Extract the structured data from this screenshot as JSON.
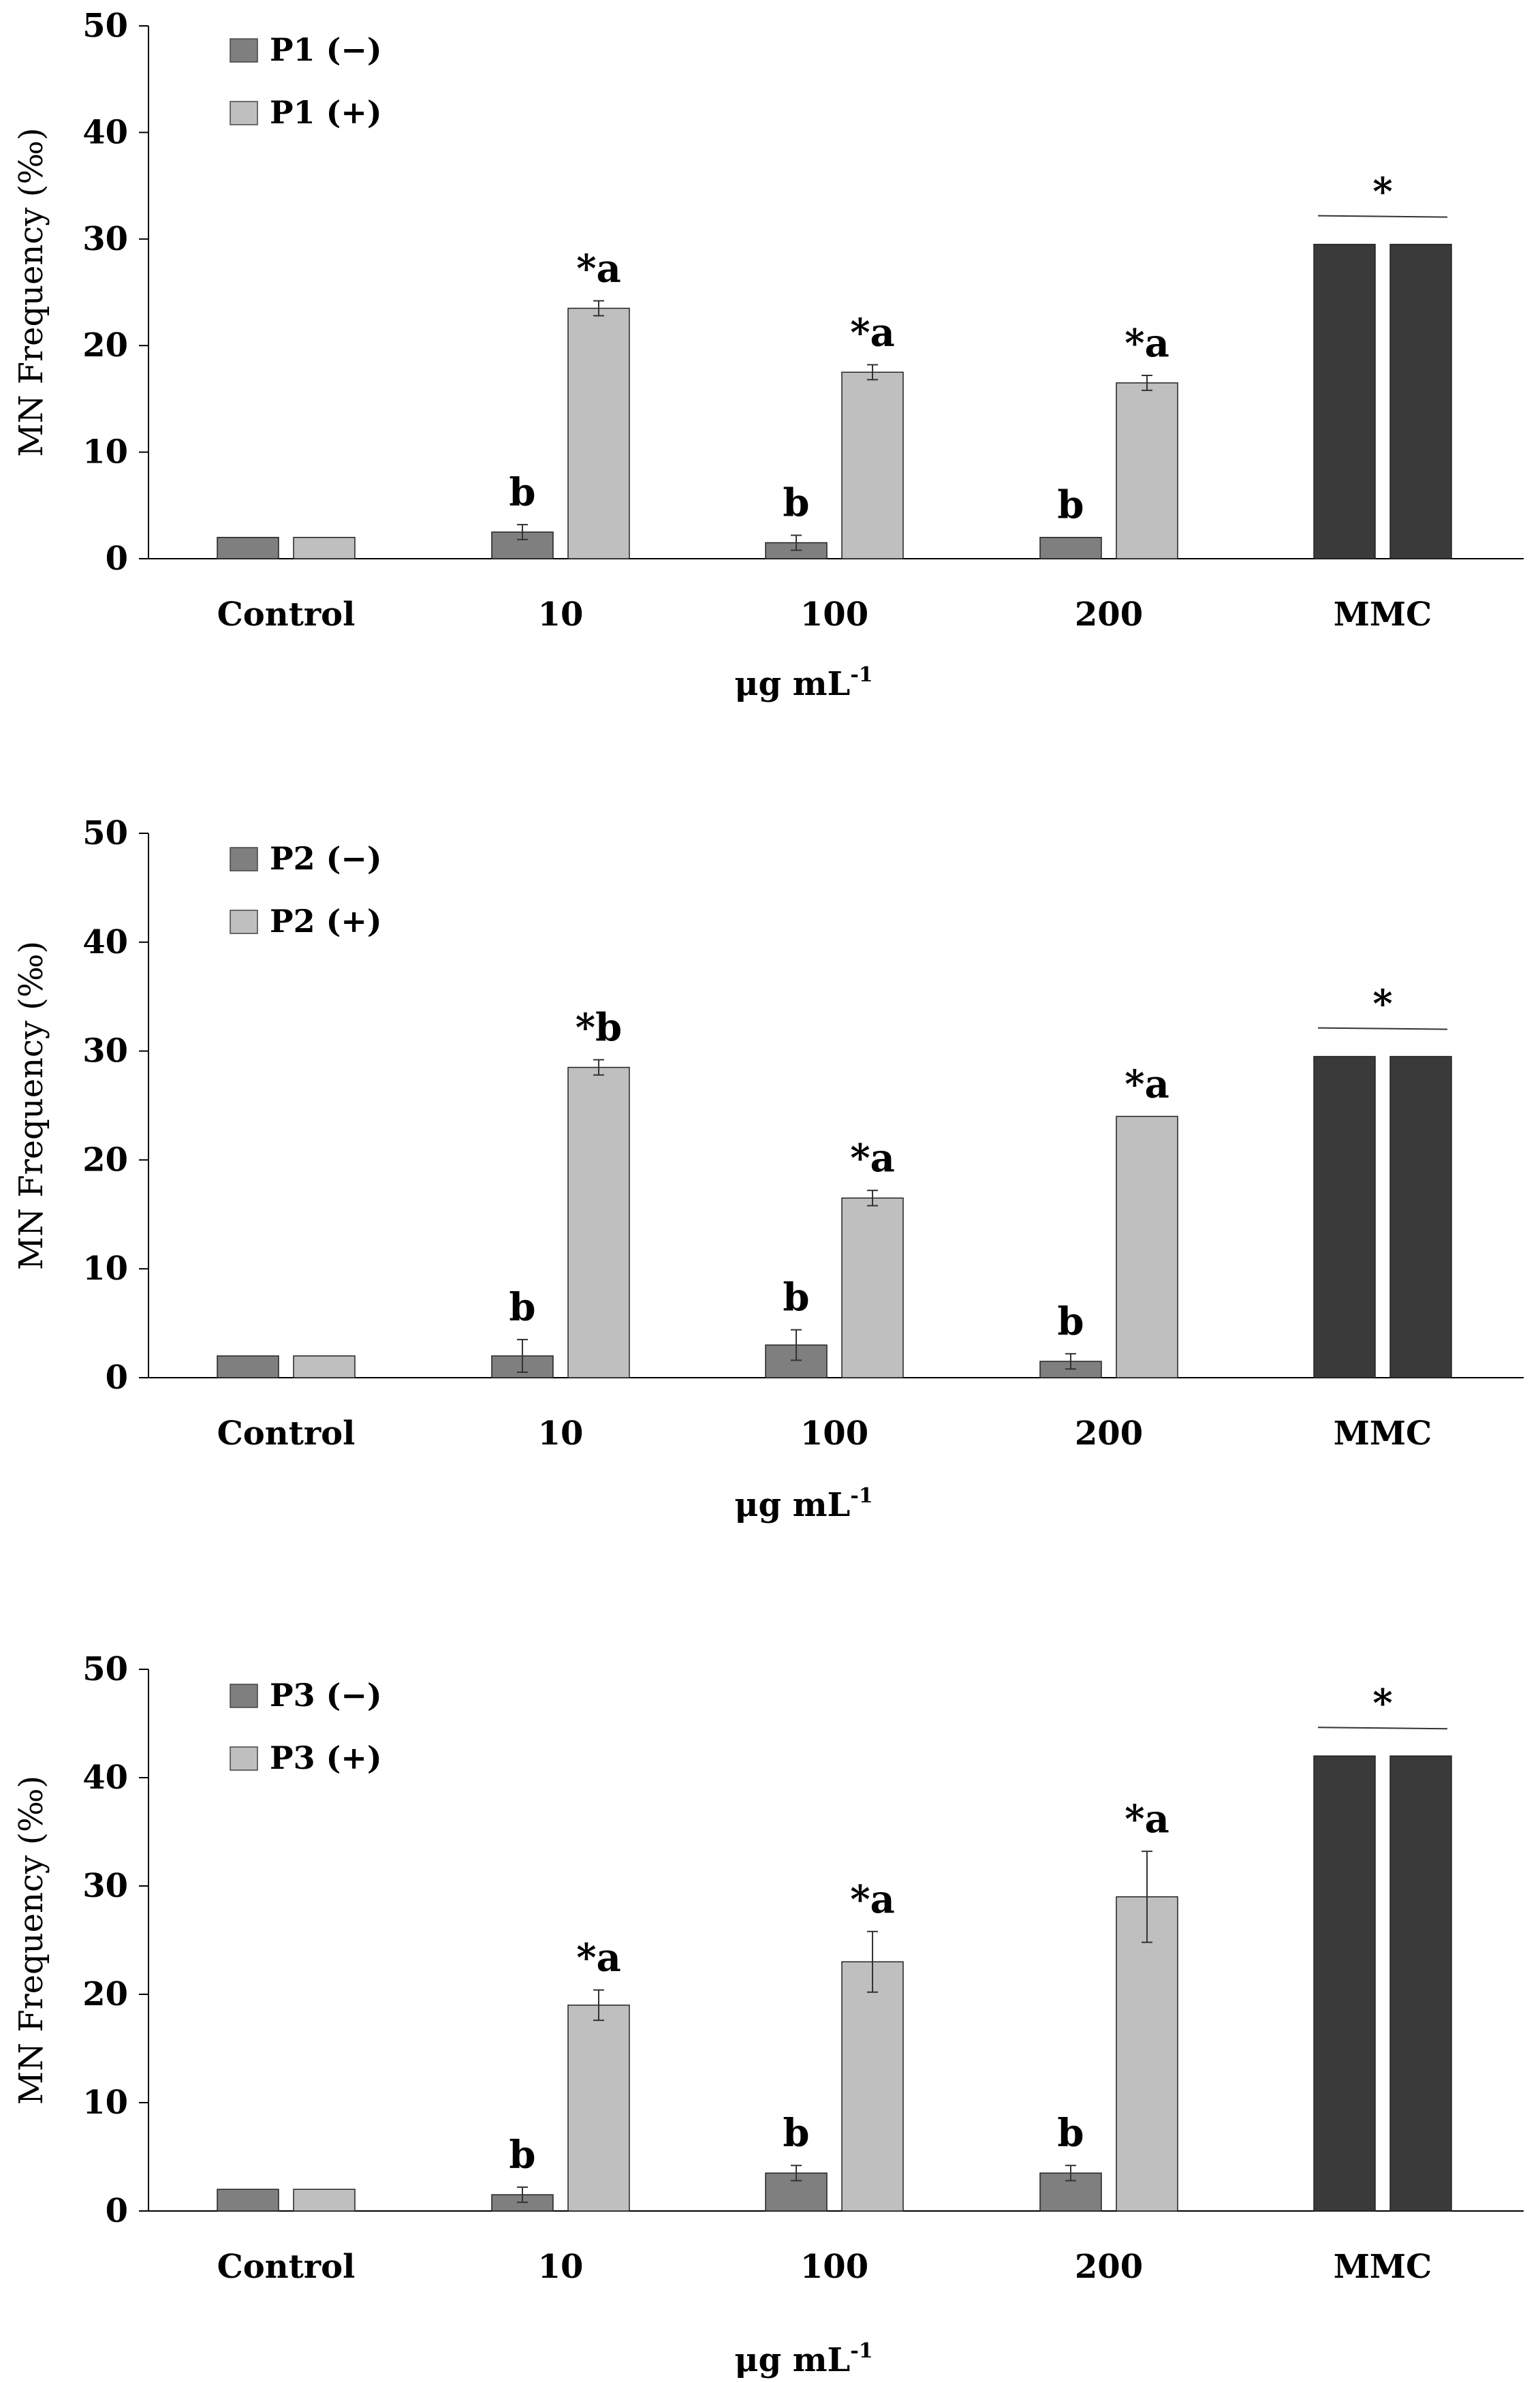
{
  "colors": {
    "minus": "#7f7f7f",
    "plus": "#bfbfbf",
    "mmc": "#3a3a3a",
    "axis": "#000000"
  },
  "chart_data": [
    {
      "type": "bar",
      "ylabel": "MN Frequency (‰)",
      "xlabel_main": "μg mL",
      "xlabel_sup": "-1",
      "ylim": [
        0,
        50
      ],
      "yticks": [
        0,
        10,
        20,
        30,
        40,
        50
      ],
      "categories": [
        "Control",
        "10",
        "100",
        "200",
        "MMC"
      ],
      "series": [
        {
          "name": "P1 (−)",
          "values": [
            2,
            2.5,
            1.5,
            2,
            29.5
          ],
          "errors": [
            0,
            0.7,
            0.7,
            0,
            0
          ]
        },
        {
          "name": "P1 (+)",
          "values": [
            2,
            23.5,
            17.5,
            16.5,
            29.5
          ],
          "errors": [
            0,
            0.7,
            0.7,
            0.7,
            0
          ]
        }
      ],
      "annotations": [
        {
          "category": "10",
          "series": 0,
          "text": "b"
        },
        {
          "category": "10",
          "series": 1,
          "text": "*a"
        },
        {
          "category": "100",
          "series": 0,
          "text": "b"
        },
        {
          "category": "100",
          "series": 1,
          "text": "*a"
        },
        {
          "category": "200",
          "series": 0,
          "text": "b"
        },
        {
          "category": "200",
          "series": 1,
          "text": "*a"
        },
        {
          "category": "MMC",
          "series": "both",
          "text": "*"
        }
      ]
    },
    {
      "type": "bar",
      "ylabel": "MN Frequency (‰)",
      "xlabel_main": "μg mL",
      "xlabel_sup": "-1",
      "ylim": [
        0,
        50
      ],
      "yticks": [
        0,
        10,
        20,
        30,
        40,
        50
      ],
      "categories": [
        "Control",
        "10",
        "100",
        "200",
        "MMC"
      ],
      "series": [
        {
          "name": "P2 (−)",
          "values": [
            2,
            2,
            3,
            1.5,
            29.5
          ],
          "errors": [
            0,
            1.5,
            1.4,
            0.7,
            0
          ]
        },
        {
          "name": "P2 (+)",
          "values": [
            2,
            28.5,
            16.5,
            24,
            29.5
          ],
          "errors": [
            0,
            0.7,
            0.7,
            0,
            0
          ]
        }
      ],
      "annotations": [
        {
          "category": "10",
          "series": 0,
          "text": "b"
        },
        {
          "category": "10",
          "series": 1,
          "text": "*b"
        },
        {
          "category": "100",
          "series": 0,
          "text": "b"
        },
        {
          "category": "100",
          "series": 1,
          "text": "*a"
        },
        {
          "category": "200",
          "series": 0,
          "text": "b"
        },
        {
          "category": "200",
          "series": 1,
          "text": "*a"
        },
        {
          "category": "MMC",
          "series": "both",
          "text": "*"
        }
      ]
    },
    {
      "type": "bar",
      "ylabel": "MN Frequency (‰)",
      "xlabel_main": "μg mL",
      "xlabel_sup": "-1",
      "ylim": [
        0,
        50
      ],
      "yticks": [
        0,
        10,
        20,
        30,
        40,
        50
      ],
      "categories": [
        "Control",
        "10",
        "100",
        "200",
        "MMC"
      ],
      "series": [
        {
          "name": "P3 (−)",
          "values": [
            2,
            1.5,
            3.5,
            3.5,
            42
          ],
          "errors": [
            0,
            0.7,
            0.7,
            0.7,
            0
          ]
        },
        {
          "name": "P3 (+)",
          "values": [
            2,
            19,
            23,
            29,
            42
          ],
          "errors": [
            0,
            1.4,
            2.8,
            4.2,
            0
          ]
        }
      ],
      "annotations": [
        {
          "category": "10",
          "series": 0,
          "text": "b"
        },
        {
          "category": "10",
          "series": 1,
          "text": "*a"
        },
        {
          "category": "100",
          "series": 0,
          "text": "b"
        },
        {
          "category": "100",
          "series": 1,
          "text": "*a"
        },
        {
          "category": "200",
          "series": 0,
          "text": "b"
        },
        {
          "category": "200",
          "series": 1,
          "text": "*a"
        },
        {
          "category": "MMC",
          "series": "both",
          "text": "*"
        }
      ]
    }
  ]
}
